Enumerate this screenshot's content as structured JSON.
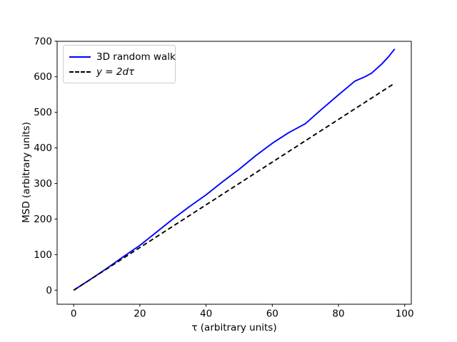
{
  "figure": {
    "background": "#ffffff"
  },
  "chart_data": {
    "type": "line",
    "title": "",
    "xlabel": "τ (arbitrary units)",
    "ylabel": "MSD (arbitrary units)",
    "xlim": [
      -5,
      102
    ],
    "ylim": [
      -39.5,
      699.5
    ],
    "xticks": [
      0,
      20,
      40,
      60,
      80,
      100
    ],
    "yticks": [
      0,
      100,
      200,
      300,
      400,
      500,
      600,
      700
    ],
    "grid": false,
    "legend": {
      "position": "upper left",
      "entries": [
        "3D random walk",
        "y = 2dτ"
      ]
    },
    "series": [
      {
        "name": "3D random walk",
        "color": "#0000ff",
        "style": "solid",
        "x": [
          0,
          5,
          10,
          15,
          20,
          25,
          30,
          35,
          40,
          45,
          50,
          55,
          60,
          65,
          70,
          75,
          80,
          85,
          88,
          90,
          93,
          95,
          97
        ],
        "y": [
          0,
          30,
          61,
          94,
          126,
          163,
          200,
          235,
          268,
          305,
          340,
          378,
          413,
          443,
          468,
          509,
          549,
          588,
          600,
          610,
          635,
          655,
          678
        ]
      },
      {
        "name": "y = 2dτ",
        "color": "#000000",
        "style": "dashed",
        "x": [
          0,
          97
        ],
        "y": [
          0,
          582
        ]
      }
    ]
  }
}
